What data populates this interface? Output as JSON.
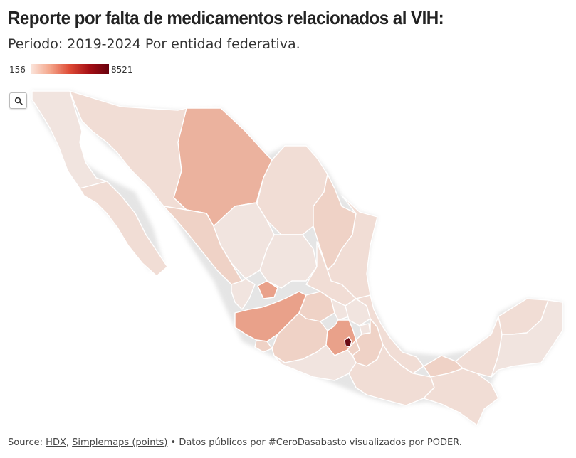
{
  "title": "Reporte por falta de medicamentos relacionados al VIH:",
  "subtitle": "Periodo: 2019-2024 Por entidad federativa.",
  "legend": {
    "min": "156",
    "max": "8521",
    "colors": [
      "#fbe6dd",
      "#f4a58a",
      "#de4a35",
      "#a50f15",
      "#67000d"
    ]
  },
  "search_icon": "search-icon",
  "map_colors": {
    "very_light": "#f1e4df",
    "light": "#f1ddd5",
    "light_mid": "#efd2c6",
    "mid": "#ecc1b1",
    "mid_strong": "#ebb29e",
    "strong": "#e9a18a",
    "darkest": "#6a0b15"
  },
  "source": {
    "prefix": "Source: ",
    "link1": "HDX",
    "separator": ", ",
    "link2": "Simplemaps (points)",
    "suffix": " • Datos públicos por #CeroDasabasto visualizados por PODER."
  }
}
